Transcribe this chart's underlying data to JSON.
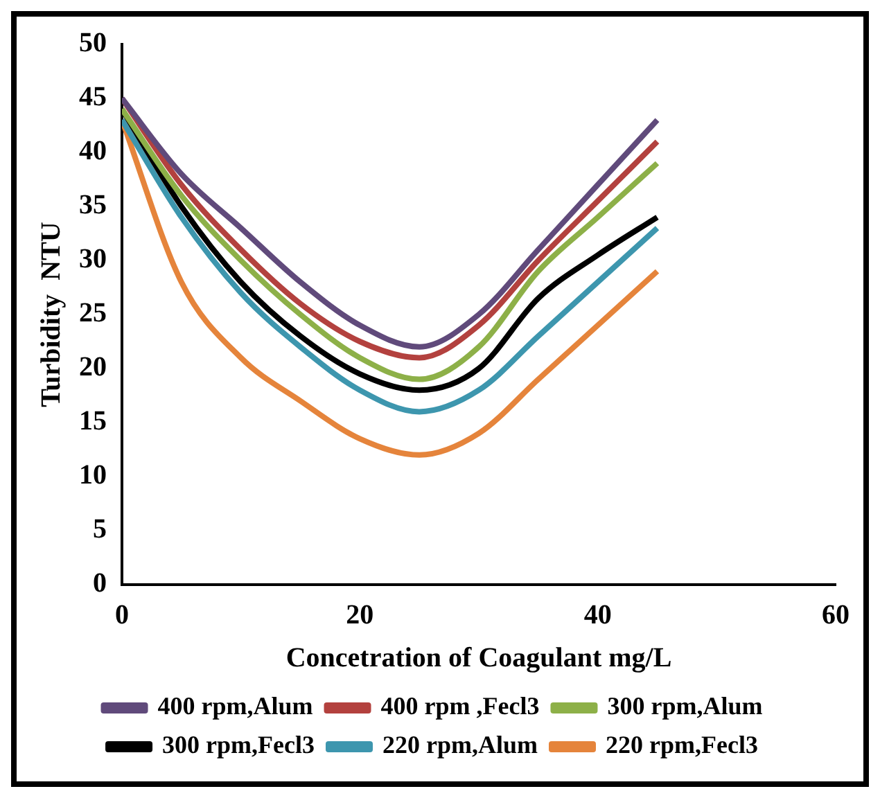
{
  "chart_data": {
    "type": "line",
    "xlabel": "Concetration of Coagulant mg/L",
    "ylabel": "Turbidity  NTU",
    "x": [
      0,
      5,
      10,
      15,
      20,
      25,
      30,
      35,
      40,
      45
    ],
    "xlim": [
      0,
      60
    ],
    "xticks": [
      0,
      20,
      40,
      60
    ],
    "ylim": [
      0,
      50
    ],
    "yticks": [
      0,
      5,
      10,
      15,
      20,
      25,
      30,
      35,
      40,
      45,
      50
    ],
    "grid": false,
    "legend": "bottom",
    "marker": "none",
    "line_style": "solid",
    "series": [
      {
        "name": "400 rpm,Alum",
        "color": "#604a7b",
        "values": [
          45,
          38,
          33,
          28,
          24,
          22,
          25,
          31,
          37,
          43
        ]
      },
      {
        "name": "400 rpm ,Fecl3",
        "color": "#b3413e",
        "values": [
          45,
          37,
          31,
          26,
          22.5,
          21,
          24,
          30,
          35.5,
          41
        ]
      },
      {
        "name": "300 rpm,Alum",
        "color": "#8db048",
        "values": [
          44,
          36,
          30,
          25,
          21,
          19,
          22,
          29,
          34,
          39
        ]
      },
      {
        "name": "300 rpm,Fecl3",
        "color": "#000000",
        "values": [
          44,
          35,
          28,
          23,
          19.5,
          18,
          20,
          26.5,
          30.5,
          34
        ]
      },
      {
        "name": "220 rpm,Alum",
        "color": "#3d96ae",
        "values": [
          43,
          34,
          27,
          22,
          18,
          16,
          18,
          23,
          28,
          33
        ]
      },
      {
        "name": "220 rpm,Fecl3",
        "color": "#e5843b",
        "values": [
          43,
          28,
          21,
          17,
          13.5,
          12,
          14,
          19,
          24,
          29
        ]
      }
    ]
  }
}
